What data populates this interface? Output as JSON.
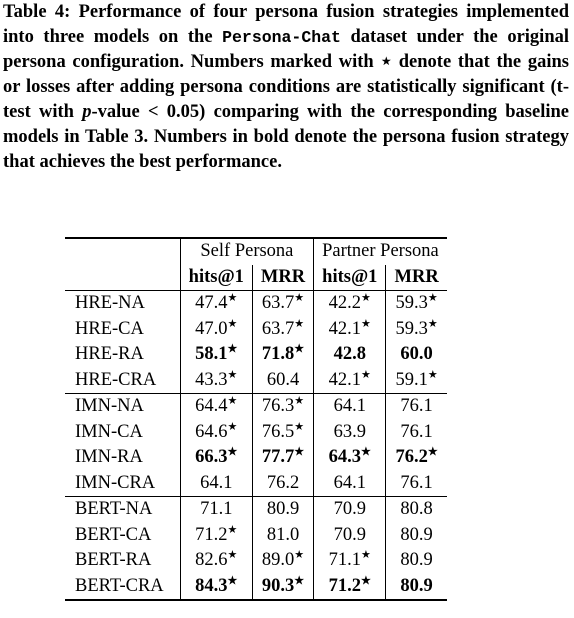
{
  "caption": [
    "Table 4: Performance of four persona fusion strategies implemented into three models on the ",
    "Persona-Chat",
    " dataset under the original persona configuration. Numbers marked with ",
    "⋆",
    " denote that the gains or losses after adding persona conditions are statistically significant (t-test with ",
    "p",
    "-value < 0.05) comparing with the corresponding baseline models in Table 3. Numbers in bold denote the persona fusion strategy that achieves the best performance."
  ],
  "table": {
    "header": {
      "groups": [
        "Self Persona",
        "Partner Persona"
      ],
      "columns": [
        "hits@1",
        "MRR",
        "hits@1",
        "MRR"
      ]
    },
    "groups": [
      [
        {
          "label": "HRE-NA",
          "bold": false,
          "cells": [
            [
              "47.4",
              "★"
            ],
            [
              "63.7",
              "★"
            ],
            [
              "42.2",
              "★"
            ],
            [
              "59.3",
              "★"
            ]
          ]
        },
        {
          "label": "HRE-CA",
          "bold": false,
          "cells": [
            [
              "47.0",
              "★"
            ],
            [
              "63.7",
              "★"
            ],
            [
              "42.1",
              "★"
            ],
            [
              "59.3",
              "★"
            ]
          ]
        },
        {
          "label": "HRE-RA",
          "bold": true,
          "cells": [
            [
              "58.1",
              "★"
            ],
            [
              "71.8",
              "★"
            ],
            [
              "42.8"
            ],
            [
              "60.0"
            ]
          ]
        },
        {
          "label": "HRE-CRA",
          "bold": false,
          "cells": [
            [
              "43.3",
              "★"
            ],
            [
              "60.4"
            ],
            [
              "42.1",
              "★"
            ],
            [
              "59.1",
              "★"
            ]
          ]
        }
      ],
      [
        {
          "label": "IMN-NA",
          "bold": false,
          "cells": [
            [
              "64.4",
              "★"
            ],
            [
              "76.3",
              "★"
            ],
            [
              "64.1"
            ],
            [
              "76.1"
            ]
          ]
        },
        {
          "label": "IMN-CA",
          "bold": false,
          "cells": [
            [
              "64.6",
              "★"
            ],
            [
              "76.5",
              "★"
            ],
            [
              "63.9"
            ],
            [
              "76.1"
            ]
          ]
        },
        {
          "label": "IMN-RA",
          "bold": true,
          "cells": [
            [
              "66.3",
              "★"
            ],
            [
              "77.7",
              "★"
            ],
            [
              "64.3",
              "★"
            ],
            [
              "76.2",
              "★"
            ]
          ]
        },
        {
          "label": "IMN-CRA",
          "bold": false,
          "cells": [
            [
              "64.1"
            ],
            [
              "76.2"
            ],
            [
              "64.1"
            ],
            [
              "76.1"
            ]
          ]
        }
      ],
      [
        {
          "label": "BERT-NA",
          "bold": false,
          "cells": [
            [
              "71.1"
            ],
            [
              "80.9"
            ],
            [
              "70.9"
            ],
            [
              "80.8"
            ]
          ]
        },
        {
          "label": "BERT-CA",
          "bold": false,
          "cells": [
            [
              "71.2",
              "★"
            ],
            [
              "81.0"
            ],
            [
              "70.9"
            ],
            [
              "80.9"
            ]
          ]
        },
        {
          "label": "BERT-RA",
          "bold": false,
          "cells": [
            [
              "82.6",
              "★"
            ],
            [
              "89.0",
              "★"
            ],
            [
              "71.1",
              "★"
            ],
            [
              "80.9"
            ]
          ]
        },
        {
          "label": "BERT-CRA",
          "bold": true,
          "cells": [
            [
              "84.3",
              "★"
            ],
            [
              "90.3",
              "★"
            ],
            [
              "71.2",
              "★"
            ],
            [
              "80.9"
            ]
          ]
        }
      ]
    ]
  }
}
